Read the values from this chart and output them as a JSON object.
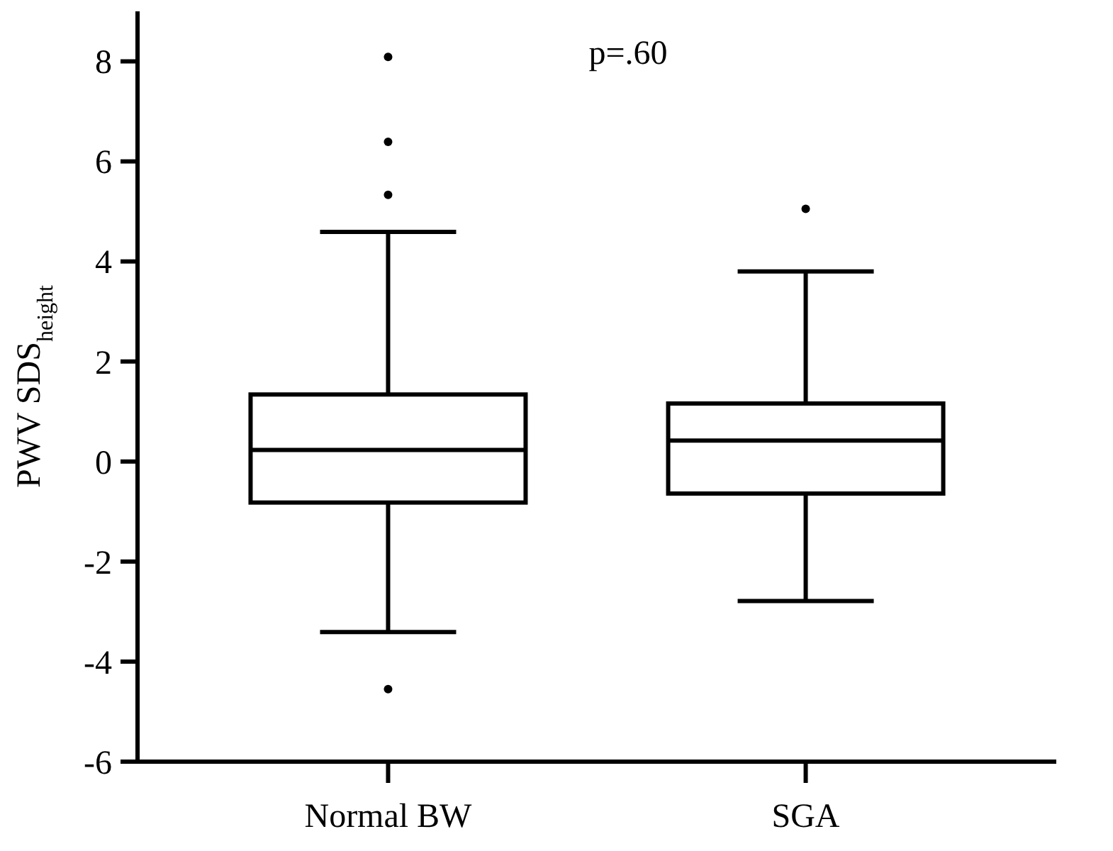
{
  "chart_data": {
    "type": "box",
    "ylabel": "PWV SDS$_{height}$",
    "categories": [
      "Normal BW",
      "SGA"
    ],
    "boxes": [
      {
        "low": -3.41,
        "q1": -0.82,
        "median": 0.23,
        "q3": 1.34,
        "high": 4.59,
        "outliers": [
          8.09,
          6.39,
          5.33,
          -4.55
        ]
      },
      {
        "low": -2.79,
        "q1": -0.64,
        "median": 0.42,
        "q3": 1.16,
        "high": 3.8,
        "outliers": [
          5.05
        ]
      }
    ],
    "color": "#000000",
    "ylim": [
      -6,
      9
    ],
    "yticks": [
      -6,
      -4,
      -2,
      0,
      2,
      4,
      6,
      8
    ],
    "annotations": [
      "p=.60"
    ]
  }
}
